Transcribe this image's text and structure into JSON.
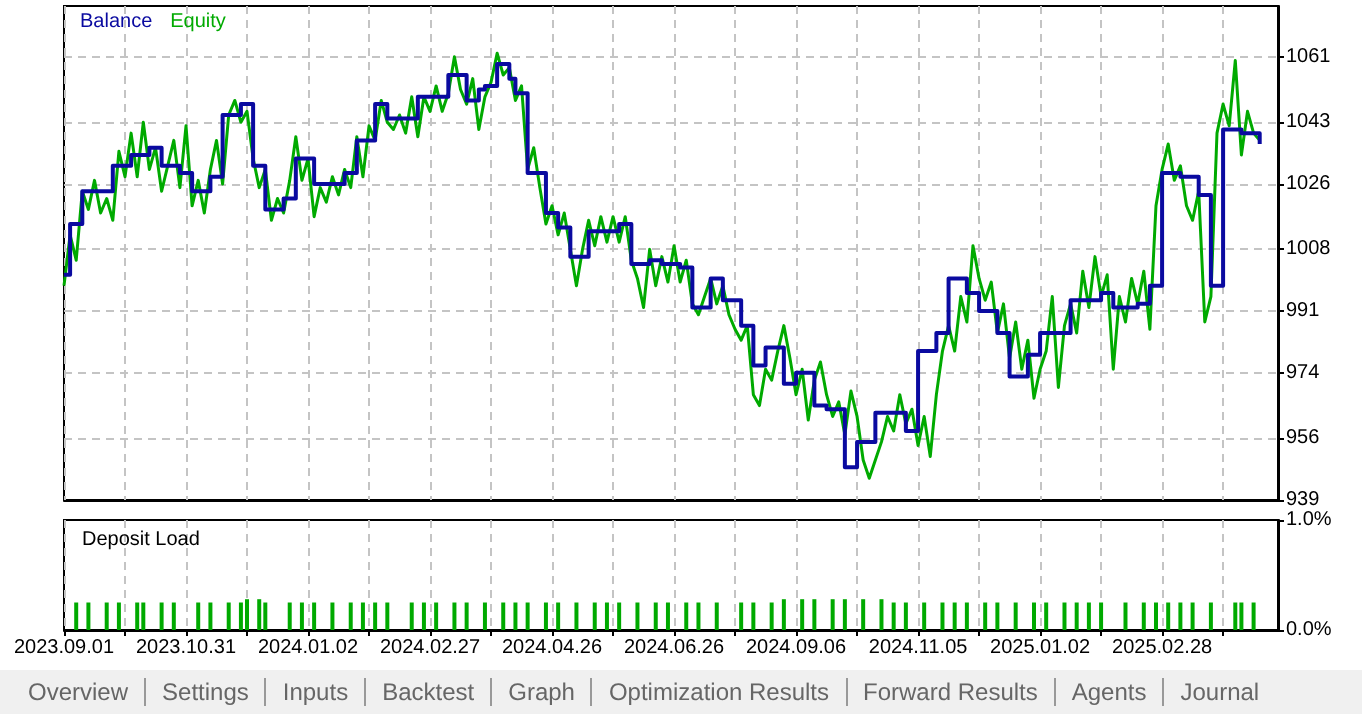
{
  "chart_data": [
    {
      "type": "line",
      "legend": "top left",
      "grid": true,
      "marker": "none",
      "tick_labels": "y",
      "categories": [
        "2023.09.01",
        null,
        null,
        null,
        null,
        null,
        null,
        null,
        null,
        null,
        null,
        null,
        null,
        null,
        null,
        null,
        null,
        null,
        null,
        null,
        "2023.10.31",
        null,
        null,
        null,
        null,
        null,
        null,
        null,
        null,
        null,
        null,
        null,
        null,
        null,
        null,
        null,
        null,
        null,
        null,
        null,
        "2024.01.02",
        null,
        null,
        null,
        null,
        null,
        null,
        null,
        null,
        null,
        null,
        null,
        null,
        null,
        null,
        null,
        null,
        null,
        null,
        null,
        "2024.02.27",
        null,
        null,
        null,
        null,
        null,
        null,
        null,
        null,
        null,
        null,
        null,
        null,
        null,
        null,
        null,
        null,
        null,
        null,
        null,
        "2024.04.26",
        null,
        null,
        null,
        null,
        null,
        null,
        null,
        null,
        null,
        null,
        null,
        null,
        null,
        null,
        null,
        null,
        null,
        null,
        null,
        "2024.06.26",
        null,
        null,
        null,
        null,
        null,
        null,
        null,
        null,
        null,
        null,
        null,
        null,
        null,
        null,
        null,
        null,
        null,
        null,
        null,
        "2024.09.06",
        null,
        null,
        null,
        null,
        null,
        null,
        null,
        null,
        null,
        null,
        null,
        null,
        null,
        null,
        null,
        null,
        null,
        null,
        null,
        "2024.11.05",
        null,
        null,
        null,
        null,
        null,
        null,
        null,
        null,
        null,
        null,
        null,
        null,
        null,
        null,
        null,
        null,
        null,
        null,
        null,
        "2025.01.02",
        null,
        null,
        null,
        null,
        null,
        null,
        null,
        null,
        null,
        null,
        null,
        null,
        null,
        null,
        null,
        null,
        null,
        null,
        null,
        "2025.02.28",
        null,
        null,
        null,
        null,
        null,
        null,
        null,
        null,
        null,
        null,
        null,
        null,
        null,
        null,
        null,
        null,
        null,
        null,
        null
      ],
      "ylim": [
        939,
        1075
      ],
      "yticks": [
        939,
        956,
        974,
        991,
        1008,
        1026,
        1043,
        1061
      ],
      "series": [
        {
          "name": "Balance",
          "type": "step",
          "color": "#0a0aa0",
          "values": [
            1001,
            1015,
            1015,
            1024,
            1024,
            1024,
            1024,
            1024,
            1031,
            1031,
            1031,
            1034,
            1034,
            1034,
            1036,
            1036,
            1031,
            1031,
            1031,
            1029,
            1029,
            1024,
            1024,
            1024,
            1028,
            1028,
            1045,
            1045,
            1045,
            1048,
            1048,
            1031,
            1031,
            1019,
            1019,
            1019,
            1022,
            1022,
            1033,
            1033,
            1033,
            1026,
            1026,
            1026,
            1026,
            1026,
            1029,
            1029,
            1038,
            1038,
            1038,
            1048,
            1048,
            1044,
            1044,
            1044,
            1044,
            1044,
            1050,
            1050,
            1050,
            1050,
            1050,
            1056,
            1056,
            1056,
            1049,
            1049,
            1052,
            1053,
            1053,
            1059,
            1059,
            1055,
            1051,
            1051,
            1029,
            1029,
            1029,
            1018,
            1018,
            1014,
            1014,
            1006,
            1006,
            1006,
            1013,
            1013,
            1013,
            1013,
            1013,
            1015,
            1015,
            1004,
            1004,
            1004,
            1005,
            1005,
            1004,
            1004,
            1004,
            1003,
            1003,
            992,
            992,
            992,
            1000,
            1000,
            994,
            994,
            994,
            987,
            987,
            976,
            976,
            981,
            981,
            981,
            971,
            971,
            974,
            974,
            974,
            965,
            965,
            964,
            964,
            964,
            948,
            948,
            955,
            955,
            955,
            963,
            963,
            963,
            963,
            963,
            958,
            958,
            980,
            980,
            980,
            985,
            985,
            1000,
            1000,
            1000,
            996,
            996,
            991,
            991,
            991,
            985,
            985,
            973,
            973,
            973,
            979,
            979,
            985,
            985,
            985,
            985,
            985,
            994,
            994,
            994,
            994,
            994,
            996,
            996,
            992,
            992,
            992,
            992,
            993,
            993,
            998,
            998,
            1029,
            1029,
            1029,
            1028,
            1028,
            1028,
            1023,
            1023,
            998,
            998,
            1041,
            1041,
            1041,
            1040,
            1040,
            1040,
            1037,
            null,
            null,
            null
          ]
        },
        {
          "name": "Equity",
          "color": "#00aa00",
          "values": [
            998,
            1012,
            1005,
            1024,
            1019,
            1027,
            1018,
            1022,
            1016,
            1035,
            1028,
            1040,
            1028,
            1043,
            1030,
            1036,
            1024,
            1031,
            1038,
            1025,
            1042,
            1020,
            1027,
            1018,
            1030,
            1038,
            1026,
            1045,
            1049,
            1043,
            1046,
            1033,
            1025,
            1030,
            1016,
            1022,
            1018,
            1027,
            1039,
            1027,
            1033,
            1017,
            1025,
            1021,
            1028,
            1023,
            1030,
            1025,
            1039,
            1028,
            1042,
            1038,
            1049,
            1043,
            1041,
            1045,
            1040,
            1050,
            1039,
            1050,
            1046,
            1053,
            1046,
            1051,
            1061,
            1052,
            1048,
            1055,
            1041,
            1050,
            1054,
            1062,
            1056,
            1058,
            1049,
            1053,
            1030,
            1036,
            1025,
            1015,
            1020,
            1012,
            1018,
            1008,
            998,
            1008,
            1016,
            1009,
            1017,
            1010,
            1017,
            1010,
            1017,
            1005,
            1000,
            992,
            1008,
            998,
            1006,
            999,
            1009,
            999,
            1005,
            993,
            990,
            995,
            1000,
            993,
            998,
            990,
            986,
            983,
            987,
            968,
            965,
            975,
            972,
            980,
            987,
            978,
            968,
            975,
            961,
            972,
            977,
            968,
            962,
            966,
            957,
            969,
            962,
            950,
            945,
            950,
            955,
            962,
            958,
            968,
            960,
            964,
            954,
            962,
            951,
            968,
            980,
            987,
            980,
            995,
            988,
            1009,
            1000,
            994,
            999,
            985,
            993,
            978,
            988,
            975,
            983,
            967,
            975,
            980,
            995,
            970,
            987,
            993,
            985,
            1002,
            992,
            1006,
            995,
            1001,
            975,
            995,
            988,
            1000,
            993,
            1002,
            986,
            1020,
            1030,
            1037,
            1027,
            1031,
            1020,
            1016,
            1024,
            988,
            995,
            1040,
            1048,
            1042,
            1060,
            1034,
            1046,
            1040,
            1038,
            null,
            null,
            null
          ]
        }
      ]
    },
    {
      "type": "bar",
      "title": "Deposit Load",
      "grid": "x",
      "color": "#00aa00",
      "categories": [
        "2023.09.01",
        null,
        null,
        null,
        null,
        null,
        null,
        null,
        null,
        null,
        null,
        null,
        null,
        null,
        null,
        null,
        null,
        null,
        null,
        null,
        "2023.10.31",
        null,
        null,
        null,
        null,
        null,
        null,
        null,
        null,
        null,
        null,
        null,
        null,
        null,
        null,
        null,
        null,
        null,
        null,
        null,
        "2024.01.02",
        null,
        null,
        null,
        null,
        null,
        null,
        null,
        null,
        null,
        null,
        null,
        null,
        null,
        null,
        null,
        null,
        null,
        null,
        null,
        "2024.02.27",
        null,
        null,
        null,
        null,
        null,
        null,
        null,
        null,
        null,
        null,
        null,
        null,
        null,
        null,
        null,
        null,
        null,
        null,
        null,
        "2024.04.26",
        null,
        null,
        null,
        null,
        null,
        null,
        null,
        null,
        null,
        null,
        null,
        null,
        null,
        null,
        null,
        null,
        null,
        null,
        null,
        "2024.06.26",
        null,
        null,
        null,
        null,
        null,
        null,
        null,
        null,
        null,
        null,
        null,
        null,
        null,
        null,
        null,
        null,
        null,
        null,
        null,
        "2024.09.06",
        null,
        null,
        null,
        null,
        null,
        null,
        null,
        null,
        null,
        null,
        null,
        null,
        null,
        null,
        null,
        null,
        null,
        null,
        null,
        "2024.11.05",
        null,
        null,
        null,
        null,
        null,
        null,
        null,
        null,
        null,
        null,
        null,
        null,
        null,
        null,
        null,
        null,
        null,
        null,
        null,
        "2025.01.02",
        null,
        null,
        null,
        null,
        null,
        null,
        null,
        null,
        null,
        null,
        null,
        null,
        null,
        null,
        null,
        null,
        null,
        null,
        null,
        "2025.02.28",
        null,
        null,
        null,
        null,
        null,
        null,
        null,
        null,
        null,
        null,
        null,
        null,
        null,
        null,
        null,
        null,
        null,
        null,
        null
      ],
      "ylim": [
        0,
        1
      ],
      "yticks": [
        {
          "value": 0,
          "label": "0.0%"
        },
        {
          "value": 1,
          "label": "1.0%"
        }
      ],
      "values": [
        null,
        null,
        0.25,
        null,
        0.25,
        null,
        null,
        0.25,
        null,
        0.25,
        null,
        null,
        0.25,
        0.25,
        null,
        null,
        0.25,
        null,
        0.25,
        null,
        null,
        null,
        0.25,
        null,
        0.25,
        null,
        null,
        0.25,
        null,
        0.25,
        0.28,
        null,
        0.28,
        0.25,
        null,
        null,
        null,
        0.25,
        null,
        0.25,
        null,
        0.25,
        null,
        null,
        0.25,
        null,
        null,
        0.25,
        null,
        0.25,
        null,
        0.25,
        null,
        0.25,
        null,
        null,
        null,
        0.25,
        null,
        0.25,
        null,
        0.25,
        null,
        null,
        0.25,
        null,
        0.25,
        null,
        null,
        0.25,
        null,
        null,
        0.25,
        null,
        0.25,
        null,
        0.25,
        null,
        null,
        0.25,
        null,
        0.25,
        null,
        null,
        0.25,
        null,
        null,
        0.25,
        null,
        0.25,
        null,
        0.25,
        null,
        null,
        0.25,
        null,
        null,
        0.25,
        null,
        0.25,
        null,
        null,
        0.25,
        null,
        0.25,
        null,
        null,
        0.25,
        null,
        null,
        null,
        0.25,
        null,
        0.25,
        null,
        null,
        0.25,
        null,
        0.28,
        null,
        null,
        0.28,
        null,
        0.28,
        null,
        null,
        0.28,
        null,
        0.28,
        null,
        null,
        0.28,
        null,
        null,
        0.28,
        null,
        0.25,
        null,
        0.25,
        null,
        null,
        0.25,
        null,
        null,
        0.25,
        null,
        0.25,
        null,
        0.25,
        null,
        null,
        0.25,
        null,
        0.25,
        null,
        null,
        0.25,
        null,
        null,
        0.25,
        null,
        0.25,
        null,
        null,
        0.25,
        null,
        0.25,
        null,
        0.25,
        null,
        0.25,
        null,
        null,
        null,
        0.25,
        null,
        null,
        0.25,
        null,
        0.25,
        null,
        0.25,
        null,
        0.25,
        null,
        0.25,
        null,
        null,
        0.25,
        null,
        null,
        null,
        0.25,
        0.25,
        null,
        0.25,
        null,
        null,
        null,
        null
      ],
      "annotations": [
        "Overview",
        "Settings",
        "Inputs",
        "Backtest",
        "Graph",
        "Optimization Results",
        "Forward Results",
        "Agents",
        "Journal"
      ]
    }
  ]
}
